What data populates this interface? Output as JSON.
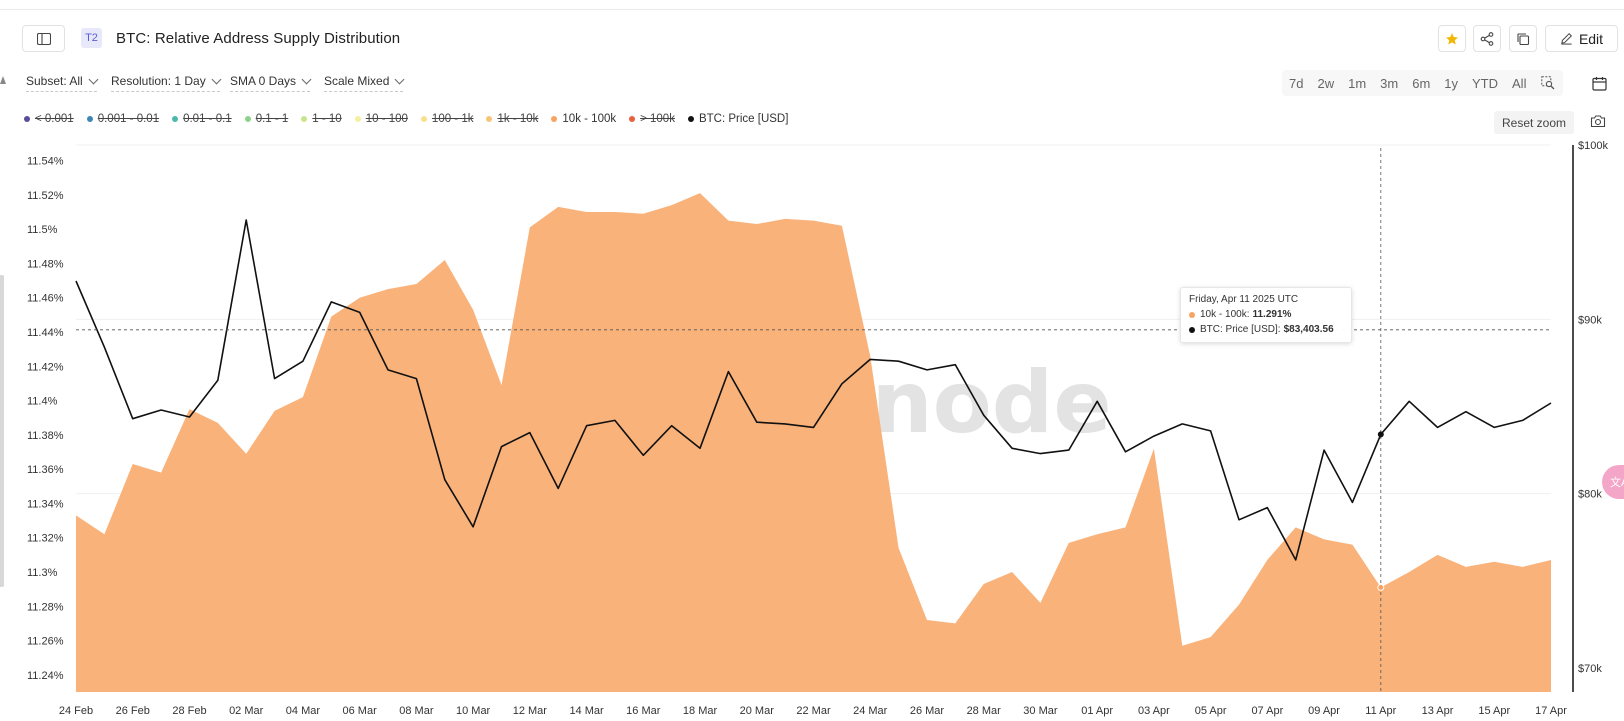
{
  "header": {
    "tier": "T2",
    "title": "BTC: Relative Address Supply Distribution",
    "edit_label": "Edit"
  },
  "controls": {
    "subset": "Subset: All",
    "resolution": "Resolution: 1 Day",
    "sma": "SMA 0 Days",
    "scale": "Scale Mixed",
    "ranges": [
      "7d",
      "2w",
      "1m",
      "3m",
      "6m",
      "1y",
      "YTD",
      "All"
    ],
    "reset_zoom": "Reset zoom"
  },
  "legend": [
    {
      "label": "< 0.001",
      "color": "#5b4c9a",
      "active": false
    },
    {
      "label": "0.001 - 0.01",
      "color": "#3f86b6",
      "active": false
    },
    {
      "label": "0.01 - 0.1",
      "color": "#4bb8a9",
      "active": false
    },
    {
      "label": "0.1 - 1",
      "color": "#8fd08a",
      "active": false
    },
    {
      "label": "1 - 10",
      "color": "#c8e58b",
      "active": false
    },
    {
      "label": "10 - 100",
      "color": "#f3f1a0",
      "active": false
    },
    {
      "label": "100 - 1k",
      "color": "#f7e08c",
      "active": false
    },
    {
      "label": "1k - 10k",
      "color": "#f8c577",
      "active": false
    },
    {
      "label": "10k - 100k",
      "color": "#f7a462",
      "active": true
    },
    {
      "label": "> 100k",
      "color": "#e8613c",
      "active": false
    },
    {
      "label": "BTC: Price [USD]",
      "color": "#111111",
      "active": true
    }
  ],
  "tooltip": {
    "date": "Friday, Apr 11 2025 UTC",
    "series1_label": "10k - 100k:",
    "series1_value": "11.291%",
    "series2_label": "BTC: Price [USD]:",
    "series2_value": "$83,403.56"
  },
  "watermark": "glassnode",
  "fab_label": "文A",
  "chart_data": {
    "type": "area",
    "x": [
      "2025-02-24",
      "2025-02-25",
      "2025-02-26",
      "2025-02-27",
      "2025-02-28",
      "2025-03-01",
      "2025-03-02",
      "2025-03-03",
      "2025-03-04",
      "2025-03-05",
      "2025-03-06",
      "2025-03-07",
      "2025-03-08",
      "2025-03-09",
      "2025-03-10",
      "2025-03-11",
      "2025-03-12",
      "2025-03-13",
      "2025-03-14",
      "2025-03-15",
      "2025-03-16",
      "2025-03-17",
      "2025-03-18",
      "2025-03-19",
      "2025-03-20",
      "2025-03-21",
      "2025-03-22",
      "2025-03-23",
      "2025-03-24",
      "2025-03-25",
      "2025-03-26",
      "2025-03-27",
      "2025-03-28",
      "2025-03-29",
      "2025-03-30",
      "2025-03-31",
      "2025-04-01",
      "2025-04-02",
      "2025-04-03",
      "2025-04-04",
      "2025-04-05",
      "2025-04-06",
      "2025-04-07",
      "2025-04-08",
      "2025-04-09",
      "2025-04-10",
      "2025-04-11",
      "2025-04-12",
      "2025-04-13",
      "2025-04-14",
      "2025-04-15",
      "2025-04-16",
      "2025-04-17"
    ],
    "x_tick_labels": [
      "24 Feb",
      "26 Feb",
      "28 Feb",
      "02 Mar",
      "04 Mar",
      "06 Mar",
      "08 Mar",
      "10 Mar",
      "12 Mar",
      "14 Mar",
      "16 Mar",
      "18 Mar",
      "20 Mar",
      "22 Mar",
      "24 Mar",
      "26 Mar",
      "28 Mar",
      "30 Mar",
      "01 Apr",
      "03 Apr",
      "05 Apr",
      "07 Apr",
      "09 Apr",
      "11 Apr",
      "13 Apr",
      "15 Apr",
      "17 Apr"
    ],
    "y_left_ticks": [
      "11.24%",
      "11.26%",
      "11.28%",
      "11.3%",
      "11.32%",
      "11.34%",
      "11.36%",
      "11.38%",
      "11.4%",
      "11.42%",
      "11.44%",
      "11.46%",
      "11.48%",
      "11.5%",
      "11.52%",
      "11.54%"
    ],
    "y_left_range": [
      11.23,
      11.545
    ],
    "y_right_ticks": [
      "$70k",
      "$80k",
      "$90k",
      "$100k"
    ],
    "y_right_range": [
      70000,
      100000
    ],
    "series": [
      {
        "name": "10k - 100k",
        "axis": "left",
        "color": "#f9b27a",
        "values": [
          11.333,
          11.322,
          11.363,
          11.358,
          11.395,
          11.387,
          11.369,
          11.394,
          11.402,
          11.449,
          11.46,
          11.465,
          11.468,
          11.482,
          11.453,
          11.409,
          11.501,
          11.513,
          11.51,
          11.51,
          11.509,
          11.514,
          11.521,
          11.505,
          11.503,
          11.506,
          11.505,
          11.502,
          11.426,
          11.314,
          11.272,
          11.27,
          11.293,
          11.3,
          11.282,
          11.317,
          11.322,
          11.326,
          11.372,
          11.257,
          11.262,
          11.281,
          11.307,
          11.326,
          11.319,
          11.316,
          11.291,
          11.3,
          11.31,
          11.303,
          11.306,
          11.303,
          11.307
        ]
      },
      {
        "name": "BTC: Price [USD]",
        "axis": "right",
        "color": "#111111",
        "values": [
          92200,
          88400,
          84300,
          84800,
          84400,
          86500,
          95700,
          86600,
          87600,
          91000,
          90400,
          87100,
          86600,
          80800,
          78100,
          82700,
          83500,
          80300,
          83900,
          84200,
          82200,
          83900,
          82600,
          87000,
          84100,
          84000,
          83800,
          86300,
          87700,
          87600,
          87100,
          87400,
          84500,
          82600,
          82300,
          82500,
          85300,
          82400,
          83300,
          84000,
          83600,
          78500,
          79200,
          76200,
          82500,
          79500,
          83400,
          85300,
          83800,
          84700,
          83800,
          84200,
          85200
        ]
      }
    ],
    "crosshair_date": "2025-04-11",
    "crosshair_value_left": 11.291,
    "crosshair_value_right": 83403.56,
    "grid": true
  }
}
